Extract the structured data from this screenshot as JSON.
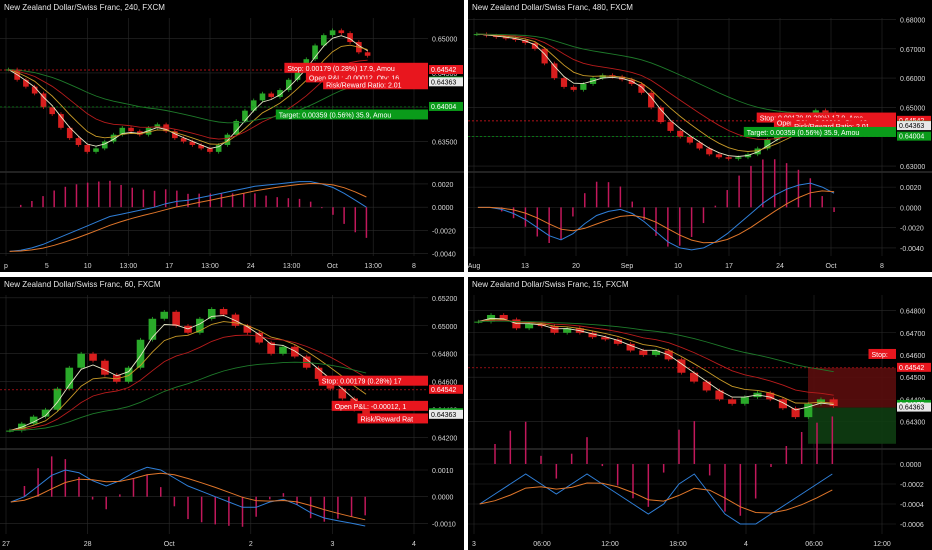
{
  "colors": {
    "background": "#000000",
    "up_candle": "#2aa92a",
    "down_candle": "#d81e1e",
    "grid": "#2a2a2a",
    "axis_text": "#d8d8d8",
    "macd_line": "#2f7fd8",
    "signal_line": "#e0762a",
    "hist": "#c2185b",
    "stop_label": "#e8161e",
    "target_label": "#0a9b1a",
    "stop_zone": "#5a0d0d",
    "target_zone": "#0e3d12",
    "ema_fast": "#e8e8c8",
    "ema_mid": "#c89a28",
    "ema_slow": "#b81c1c",
    "ema_long": "#1e7a2a"
  },
  "chart_data": [
    {
      "type": "candlestick",
      "title": "New Zealand Dollar/Swiss Franc, 240, FXCM",
      "price_ticks": [
        "0.65000",
        "0.64500",
        "0.64000",
        "0.63500"
      ],
      "price_ylim": [
        0.631,
        0.653
      ],
      "time_labels": [
        "p",
        "5",
        "10",
        "13:00",
        "17",
        "13:00",
        "24",
        "13:00",
        "Oct",
        "13:00",
        "8"
      ],
      "indicator_ticks": [
        "0.0020",
        "0.0000",
        "-0.0020",
        "-0.0040"
      ],
      "indicator_ylim": [
        -0.0042,
        0.0026
      ],
      "price_series": [
        0.6455,
        0.644,
        0.643,
        0.642,
        0.64,
        0.639,
        0.637,
        0.6355,
        0.6345,
        0.6335,
        0.634,
        0.635,
        0.636,
        0.637,
        0.6365,
        0.636,
        0.637,
        0.6375,
        0.6365,
        0.6355,
        0.635,
        0.6345,
        0.634,
        0.6335,
        0.6345,
        0.636,
        0.638,
        0.6395,
        0.641,
        0.642,
        0.6415,
        0.6425,
        0.644,
        0.6455,
        0.647,
        0.649,
        0.6505,
        0.6512,
        0.6508,
        0.6495,
        0.648,
        0.6475
      ],
      "macd": [
        -0.0038,
        -0.0037,
        -0.0035,
        -0.0032,
        -0.0028,
        -0.0024,
        -0.002,
        -0.0016,
        -0.0012,
        -0.0008,
        -0.0006,
        -0.0004,
        -0.0002,
        0.0,
        0.0003,
        0.0005,
        0.0006,
        0.0008,
        0.001,
        0.0012,
        0.0014,
        0.0016,
        0.0018,
        0.0019,
        0.002,
        0.0021,
        0.0022,
        0.0022,
        0.002,
        0.0017,
        0.0012,
        0.0006,
        0.0
      ],
      "levels": {
        "stop": 0.64542,
        "current": 0.64375,
        "entry": 0.64363,
        "target": 0.64004
      },
      "level_labels": [
        {
          "text": "0.64542",
          "kind": "stop"
        },
        {
          "text": "0.64375",
          "kind": "target"
        },
        {
          "text": "0.64363",
          "kind": "neutral"
        },
        {
          "text": "0.64004",
          "kind": "target"
        }
      ],
      "annotations": [
        {
          "text": "Stop: 0.00179 (0.28%) 17.9, Amou",
          "kind": "stop",
          "at": 0.6456
        },
        {
          "text": "Open P&L: -0.00012, Qty: 16",
          "kind": "stop",
          "at": 0.6442
        },
        {
          "text": "Risk/Reward Ratio: 2.01",
          "kind": "stop",
          "at": 0.6432
        },
        {
          "text": "Target: 0.00359 (0.56%) 35.9, Amou",
          "kind": "target",
          "at": 0.6388
        }
      ]
    },
    {
      "type": "candlestick",
      "title": "New Zealand Dollar/Swiss Franc, 480, FXCM",
      "price_ticks": [
        "0.68000",
        "0.67000",
        "0.66000",
        "0.65000",
        "0.64000",
        "0.63000"
      ],
      "price_ylim": [
        0.629,
        0.6805
      ],
      "time_labels": [
        "Aug",
        "13",
        "20",
        "Sep",
        "10",
        "17",
        "24",
        "Oct",
        "8"
      ],
      "indicator_ticks": [
        "0.0020",
        "0.0000",
        "-0.0020",
        "-0.0040"
      ],
      "indicator_ylim": [
        -0.0048,
        0.003
      ],
      "price_series": [
        0.675,
        0.6745,
        0.674,
        0.6735,
        0.673,
        0.672,
        0.67,
        0.665,
        0.66,
        0.657,
        0.656,
        0.658,
        0.66,
        0.661,
        0.6605,
        0.6595,
        0.658,
        0.655,
        0.65,
        0.645,
        0.642,
        0.64,
        0.638,
        0.636,
        0.634,
        0.633,
        0.6325,
        0.633,
        0.634,
        0.636,
        0.639,
        0.641,
        0.643,
        0.645,
        0.647,
        0.649,
        0.648,
        0.647
      ],
      "macd": [
        0.0,
        0.0,
        -0.0002,
        -0.0006,
        -0.0012,
        -0.002,
        -0.0028,
        -0.0032,
        -0.0026,
        -0.0016,
        -0.0008,
        -0.0004,
        -0.0002,
        -0.0006,
        -0.0014,
        -0.0024,
        -0.0034,
        -0.004,
        -0.0042,
        -0.004,
        -0.0034,
        -0.0026,
        -0.0016,
        -0.0006,
        0.0004,
        0.0012,
        0.0018,
        0.0022,
        0.0024,
        0.002,
        0.0014
      ],
      "levels": {
        "stop": 0.64542,
        "current": 0.64375,
        "entry": 0.64363,
        "target": 0.64004
      },
      "level_labels": [
        {
          "text": "0.64542",
          "kind": "stop"
        },
        {
          "text": "0.64375",
          "kind": "target"
        },
        {
          "text": "0.64363",
          "kind": "neutral"
        },
        {
          "text": "0.64004",
          "kind": "target"
        }
      ],
      "annotations": [
        {
          "text": "Stop: 0.00179 (0.28%) 17.9, Amo",
          "kind": "stop",
          "at": 0.6462
        },
        {
          "text": "Open P&L: -0.00012, Qty: 16",
          "kind": "stop",
          "at": 0.6445
        },
        {
          "text": "Risk/Reward Ratio: 2.01",
          "kind": "stop",
          "at": 0.6433
        },
        {
          "text": "Target: 0.00359 (0.56%) 35.9, Amou",
          "kind": "target",
          "at": 0.6413
        }
      ]
    },
    {
      "type": "candlestick",
      "title": "New Zealand Dollar/Swiss Franc, 60, FXCM",
      "price_ticks": [
        "0.65200",
        "0.65000",
        "0.64800",
        "0.64600",
        "0.64400",
        "0.64200"
      ],
      "price_ylim": [
        0.6414,
        0.6522
      ],
      "time_labels": [
        "27",
        "28",
        "Oct",
        "2",
        "3",
        "4"
      ],
      "indicator_ticks": [
        "0.0010",
        "0.0000",
        "-0.0010"
      ],
      "indicator_ylim": [
        -0.0014,
        0.0016
      ],
      "price_series": [
        0.6425,
        0.643,
        0.6435,
        0.644,
        0.6455,
        0.647,
        0.648,
        0.6475,
        0.6465,
        0.646,
        0.647,
        0.649,
        0.6505,
        0.651,
        0.65,
        0.6495,
        0.6505,
        0.6512,
        0.6508,
        0.65,
        0.6495,
        0.6488,
        0.648,
        0.6485,
        0.6478,
        0.647,
        0.6462,
        0.6455,
        0.6448,
        0.644,
        0.6436
      ],
      "macd": [
        -0.0002,
        0.0,
        0.0004,
        0.0008,
        0.001,
        0.0009,
        0.0006,
        0.0004,
        0.0006,
        0.0009,
        0.0011,
        0.001,
        0.0007,
        0.0004,
        0.0002,
        0.0,
        -0.0002,
        -0.0004,
        -0.0004,
        -0.0002,
        -0.0001,
        -0.0003,
        -0.0006,
        -0.0008,
        -0.0009,
        -0.001,
        -0.0011
      ],
      "levels": {
        "stop": 0.64542,
        "current": 0.64375,
        "entry": 0.64363
      },
      "level_labels": [
        {
          "text": "0.64542",
          "kind": "stop"
        },
        {
          "text": "0.64375",
          "kind": "target"
        },
        {
          "text": "0.64363",
          "kind": "neutral"
        }
      ],
      "annotations": [
        {
          "text": "Stop: 0.00179 (0.28%) 17",
          "kind": "stop",
          "at": 0.646
        },
        {
          "text": "Open P&L: -0.00012, 1",
          "kind": "stop",
          "at": 0.6442
        },
        {
          "text": "Risk/Reward Rat",
          "kind": "stop",
          "at": 0.6433
        }
      ]
    },
    {
      "type": "candlestick",
      "title": "New Zealand Dollar/Swiss Franc, 15, FXCM",
      "price_ticks": [
        "0.64800",
        "0.64700",
        "0.64600",
        "0.64500",
        "0.64400",
        "0.64300"
      ],
      "price_ylim": [
        0.6419,
        0.6487
      ],
      "time_labels": [
        "3",
        "06:00",
        "12:00",
        "18:00",
        "4",
        "06:00",
        "12:00"
      ],
      "indicator_ticks": [
        "0.0000",
        "-0.0002",
        "-0.0004",
        "-0.0006"
      ],
      "indicator_ylim": [
        -0.0007,
        0.0001
      ],
      "price_series": [
        0.6475,
        0.6478,
        0.6476,
        0.6472,
        0.6474,
        0.6473,
        0.647,
        0.6472,
        0.647,
        0.6468,
        0.6467,
        0.6465,
        0.6462,
        0.646,
        0.6462,
        0.6458,
        0.6452,
        0.6448,
        0.6444,
        0.644,
        0.6438,
        0.6441,
        0.6443,
        0.644,
        0.6436,
        0.6432,
        0.6438,
        0.644,
        0.6437
      ],
      "macd": [
        -0.0004,
        -0.0003,
        -0.0002,
        -0.0001,
        -0.0002,
        -0.0003,
        -0.0002,
        -0.0001,
        -0.0002,
        -0.0003,
        -0.0004,
        -0.0005,
        -0.0004,
        -0.0002,
        -0.0001,
        -0.0003,
        -0.0005,
        -0.0006,
        -0.0006,
        -0.0005,
        -0.0004,
        -0.0003,
        -0.0002,
        -0.0001
      ],
      "levels": {
        "stop": 0.64542,
        "current": 0.64375,
        "entry": 0.64363
      },
      "zones": {
        "stop_top": 0.64542,
        "target_bottom": 0.642
      },
      "level_labels": [
        {
          "text": "0.64542",
          "kind": "stop"
        },
        {
          "text": "0.64375",
          "kind": "target"
        },
        {
          "text": "0.64363",
          "kind": "neutral"
        }
      ],
      "annotations": [
        {
          "text": "Stop:",
          "kind": "stop",
          "at": 0.646
        }
      ]
    }
  ]
}
